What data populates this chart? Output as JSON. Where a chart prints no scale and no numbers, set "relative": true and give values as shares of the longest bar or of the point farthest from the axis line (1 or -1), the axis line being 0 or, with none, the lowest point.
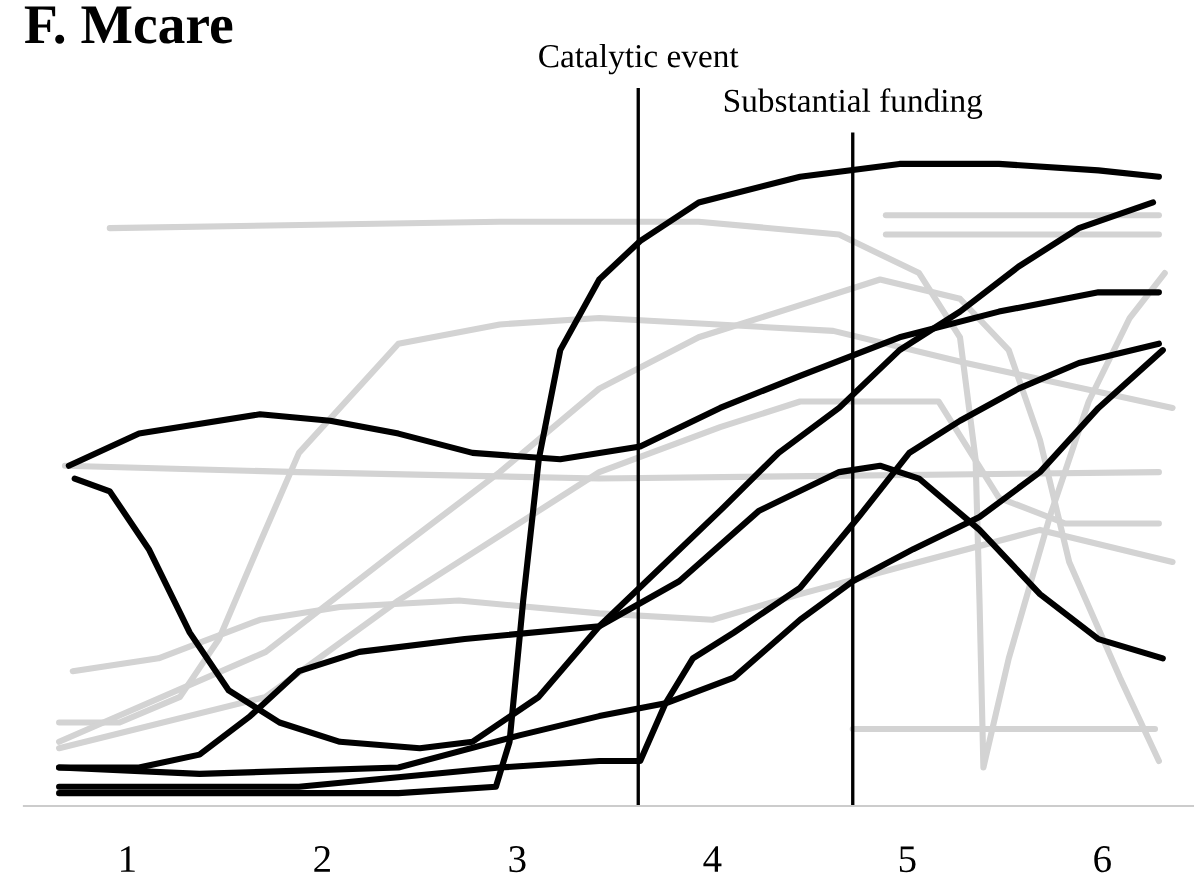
{
  "chart_data": {
    "type": "line",
    "title": "F. Mcare",
    "relative": true,
    "xlim": [
      0.47,
      6.47
    ],
    "xticks": [
      1,
      2,
      3,
      4,
      5,
      6
    ],
    "grid": false,
    "legend": false,
    "marker": "none",
    "line_style": "solid",
    "ref_lines": [
      {
        "axis": "x",
        "value": 3.62,
        "label": "Catalytic event",
        "color": "#000000"
      },
      {
        "axis": "x",
        "value": 4.72,
        "label": "Substantial funding",
        "color": "#000000"
      }
    ],
    "series": [
      {
        "color": "#d3d3d3",
        "x": [
          0.91,
          2.91,
          3.93,
          4.65,
          5.06,
          5.27,
          5.35,
          5.37,
          5.39,
          5.52,
          5.73,
          5.93,
          6.14,
          6.32
        ],
        "values": [
          0.9,
          0.91,
          0.91,
          0.89,
          0.83,
          0.73,
          0.54,
          0.32,
          0.06,
          0.23,
          0.45,
          0.63,
          0.76,
          0.83
        ]
      },
      {
        "color": "#d3d3d3",
        "x": [
          4.89,
          6.29
        ],
        "values": [
          0.92,
          0.92
        ]
      },
      {
        "color": "#d3d3d3",
        "x": [
          4.89,
          6.29
        ],
        "values": [
          0.89,
          0.89
        ]
      },
      {
        "color": "#d3d3d3",
        "x": [
          4.72,
          6.27
        ],
        "values": [
          0.12,
          0.12
        ]
      },
      {
        "color": "#d3d3d3",
        "x": [
          0.68,
          1.88,
          3.42,
          6.29
        ],
        "values": [
          0.53,
          0.52,
          0.51,
          0.52
        ]
      },
      {
        "color": "#d3d3d3",
        "x": [
          0.72,
          1.16,
          1.68,
          2.09,
          2.7,
          3.42,
          4.0,
          4.45,
          5.06,
          5.68,
          6.36
        ],
        "values": [
          0.21,
          0.23,
          0.29,
          0.31,
          0.32,
          0.3,
          0.29,
          0.33,
          0.38,
          0.43,
          0.38
        ]
      },
      {
        "color": "#d3d3d3",
        "x": [
          0.65,
          0.96,
          1.27,
          1.47,
          1.68,
          1.88,
          2.39,
          2.91,
          3.42,
          4.62,
          5.3,
          6.36
        ],
        "values": [
          0.13,
          0.13,
          0.17,
          0.26,
          0.41,
          0.55,
          0.72,
          0.75,
          0.76,
          0.74,
          0.69,
          0.62
        ]
      },
      {
        "color": "#d3d3d3",
        "x": [
          0.65,
          1.71,
          2.39,
          2.91,
          3.42,
          3.93,
          4.45,
          4.86,
          5.27,
          5.52,
          5.68,
          5.83,
          6.09,
          6.29
        ],
        "values": [
          0.1,
          0.24,
          0.4,
          0.52,
          0.65,
          0.73,
          0.78,
          0.82,
          0.79,
          0.71,
          0.57,
          0.38,
          0.2,
          0.07
        ]
      },
      {
        "color": "#d3d3d3",
        "x": [
          0.65,
          1.71,
          2.39,
          3.42,
          4.04,
          4.45,
          5.16,
          5.47,
          5.81,
          6.29
        ],
        "values": [
          0.09,
          0.17,
          0.32,
          0.52,
          0.59,
          0.63,
          0.63,
          0.48,
          0.44,
          0.44
        ]
      },
      {
        "color": "#000000",
        "x": [
          0.65,
          1.37,
          2.39,
          2.89,
          2.96,
          3.03,
          3.11,
          3.22,
          3.42,
          3.63,
          3.93,
          4.45,
          4.96,
          5.47,
          5.98,
          6.29
        ],
        "values": [
          0.02,
          0.02,
          0.02,
          0.03,
          0.1,
          0.32,
          0.54,
          0.71,
          0.82,
          0.88,
          0.94,
          0.98,
          1.0,
          1.0,
          0.99,
          0.98
        ]
      },
      {
        "color": "#000000",
        "x": [
          0.7,
          1.06,
          1.68,
          2.04,
          2.39,
          2.77,
          3.22,
          3.63,
          4.04,
          4.45,
          4.96,
          5.47,
          5.98,
          6.29
        ],
        "values": [
          0.53,
          0.58,
          0.61,
          0.6,
          0.58,
          0.55,
          0.54,
          0.56,
          0.62,
          0.67,
          0.73,
          0.77,
          0.8,
          0.8
        ]
      },
      {
        "color": "#000000",
        "x": [
          0.73,
          0.91,
          1.11,
          1.32,
          1.52,
          1.78,
          2.09,
          2.5,
          2.77,
          3.11,
          3.42,
          3.73,
          4.04,
          4.34,
          4.65,
          4.96,
          5.27,
          5.57,
          5.88,
          6.26
        ],
        "values": [
          0.51,
          0.49,
          0.4,
          0.27,
          0.18,
          0.13,
          0.1,
          0.09,
          0.1,
          0.17,
          0.28,
          0.37,
          0.46,
          0.55,
          0.62,
          0.71,
          0.77,
          0.84,
          0.9,
          0.94
        ]
      },
      {
        "color": "#000000",
        "x": [
          0.65,
          1.37,
          2.39,
          3.01,
          3.42,
          3.76,
          4.11,
          4.45,
          4.72,
          5.03,
          5.37,
          5.68,
          5.98,
          6.31
        ],
        "values": [
          0.06,
          0.05,
          0.06,
          0.11,
          0.14,
          0.16,
          0.2,
          0.29,
          0.35,
          0.4,
          0.45,
          0.52,
          0.62,
          0.71
        ]
      },
      {
        "color": "#000000",
        "x": [
          0.65,
          1.88,
          2.91,
          3.42,
          3.63,
          3.76,
          3.9,
          4.11,
          4.45,
          4.75,
          5.01,
          5.27,
          5.57,
          5.88,
          6.29
        ],
        "values": [
          0.03,
          0.03,
          0.06,
          0.07,
          0.07,
          0.16,
          0.23,
          0.27,
          0.34,
          0.45,
          0.55,
          0.6,
          0.65,
          0.69,
          0.72
        ]
      },
      {
        "color": "#000000",
        "x": [
          0.65,
          1.06,
          1.37,
          1.63,
          1.88,
          2.19,
          2.73,
          3.42,
          3.83,
          4.24,
          4.65,
          4.86,
          5.06,
          5.37,
          5.68,
          5.98,
          6.31
        ],
        "values": [
          0.06,
          0.06,
          0.08,
          0.14,
          0.21,
          0.24,
          0.26,
          0.28,
          0.35,
          0.46,
          0.52,
          0.53,
          0.51,
          0.43,
          0.33,
          0.26,
          0.23
        ]
      }
    ]
  }
}
